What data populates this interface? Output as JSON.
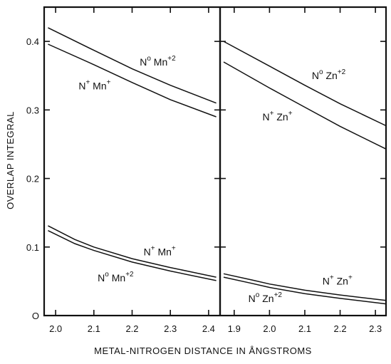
{
  "chart_data": {
    "type": "line",
    "ylabel": "OVERLAP INTEGRAL",
    "xlabel": "METAL-NITROGEN DISTANCE IN ÅNGSTROMS",
    "ylim": [
      0,
      0.45
    ],
    "yticks": [
      {
        "value": 0,
        "label": "O"
      },
      {
        "value": 0.1,
        "label": "0.1"
      },
      {
        "value": 0.2,
        "label": "0.2"
      },
      {
        "value": 0.3,
        "label": "0.3"
      },
      {
        "value": 0.4,
        "label": "0.4"
      }
    ],
    "panels": [
      {
        "id": "mn",
        "xlim": [
          1.97,
          2.43
        ],
        "xticks": [
          {
            "value": 2.0,
            "label": "2.0"
          },
          {
            "value": 2.1,
            "label": "2.1"
          },
          {
            "value": 2.2,
            "label": "2.2"
          },
          {
            "value": 2.3,
            "label": "2.3"
          },
          {
            "value": 2.4,
            "label": "2.4"
          }
        ],
        "series": [
          {
            "id": "mn-upper-a",
            "x": [
              1.98,
              2.1,
              2.2,
              2.3,
              2.42
            ],
            "y": [
              0.42,
              0.387,
              0.36,
              0.336,
              0.31
            ]
          },
          {
            "id": "mn-upper-b",
            "x": [
              1.98,
              2.1,
              2.2,
              2.3,
              2.42
            ],
            "y": [
              0.396,
              0.366,
              0.34,
              0.315,
              0.29
            ]
          },
          {
            "id": "mn-lower-a",
            "x": [
              1.98,
              2.05,
              2.1,
              2.2,
              2.3,
              2.42
            ],
            "y": [
              0.131,
              0.111,
              0.1,
              0.083,
              0.07,
              0.056
            ]
          },
          {
            "id": "mn-lower-b",
            "x": [
              1.98,
              2.05,
              2.1,
              2.2,
              2.3,
              2.42
            ],
            "y": [
              0.124,
              0.105,
              0.095,
              0.078,
              0.065,
              0.051
            ]
          }
        ],
        "annotations": [
          {
            "id": "mn-label-1",
            "base": "N",
            "sup1": "o",
            "mid": " Mn",
            "sup2": "+2",
            "x": 2.22,
            "y": 0.365
          },
          {
            "id": "mn-label-2",
            "base": "N",
            "sup1": "+",
            "mid": " Mn",
            "sup2": "+",
            "x": 2.06,
            "y": 0.33
          },
          {
            "id": "mn-label-3",
            "base": "N",
            "sup1": "+",
            "mid": " Mn",
            "sup2": "+",
            "x": 2.23,
            "y": 0.088
          },
          {
            "id": "mn-label-4",
            "base": "N",
            "sup1": "o",
            "mid": " Mn",
            "sup2": "+2",
            "x": 2.11,
            "y": 0.05
          }
        ]
      },
      {
        "id": "zn",
        "xlim": [
          1.86,
          2.33
        ],
        "xticks": [
          {
            "value": 1.9,
            "label": "1.9"
          },
          {
            "value": 2.0,
            "label": "2.0"
          },
          {
            "value": 2.1,
            "label": "2.1"
          },
          {
            "value": 2.2,
            "label": "2.2"
          },
          {
            "value": 2.3,
            "label": "2.3"
          }
        ],
        "series": [
          {
            "id": "zn-upper-a",
            "x": [
              1.87,
              2.0,
              2.1,
              2.2,
              2.33
            ],
            "y": [
              0.4,
              0.364,
              0.336,
              0.309,
              0.277
            ]
          },
          {
            "id": "zn-upper-b",
            "x": [
              1.87,
              2.0,
              2.1,
              2.2,
              2.33
            ],
            "y": [
              0.37,
              0.332,
              0.304,
              0.276,
              0.243
            ]
          },
          {
            "id": "zn-lower-a",
            "x": [
              1.87,
              1.95,
              2.0,
              2.1,
              2.2,
              2.33
            ],
            "y": [
              0.061,
              0.052,
              0.046,
              0.037,
              0.03,
              0.022
            ]
          },
          {
            "id": "zn-lower-b",
            "x": [
              1.87,
              1.95,
              2.0,
              2.1,
              2.2,
              2.33
            ],
            "y": [
              0.056,
              0.047,
              0.041,
              0.032,
              0.025,
              0.017
            ]
          }
        ],
        "annotations": [
          {
            "id": "zn-label-1",
            "base": "N",
            "sup1": "o",
            "mid": " Zn",
            "sup2": "+2",
            "x": 2.12,
            "y": 0.345
          },
          {
            "id": "zn-label-2",
            "base": "N",
            "sup1": "+",
            "mid": " Zn",
            "sup2": "+",
            "x": 1.98,
            "y": 0.285
          },
          {
            "id": "zn-label-3",
            "base": "N",
            "sup1": "+",
            "mid": " Zn",
            "sup2": "+",
            "x": 2.15,
            "y": 0.045
          },
          {
            "id": "zn-label-4",
            "base": "N",
            "sup1": "o",
            "mid": " Zn",
            "sup2": "+2",
            "x": 1.94,
            "y": 0.02
          }
        ]
      }
    ]
  }
}
